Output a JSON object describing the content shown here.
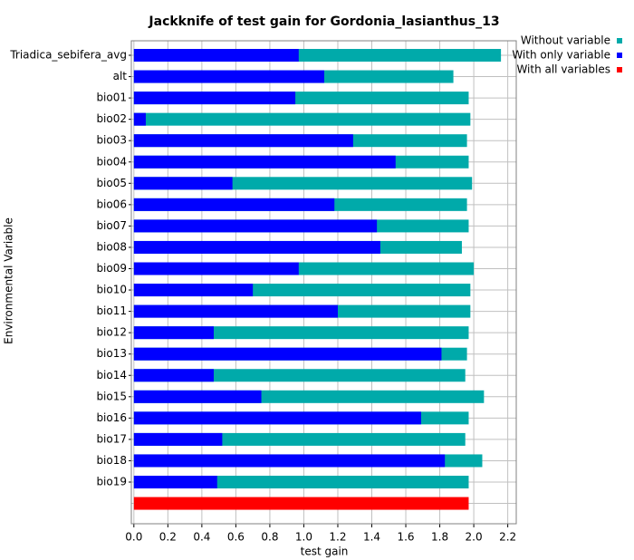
{
  "chart_data": {
    "type": "jackknife-bar",
    "title": "Jackknife of test gain for Gordonia_lasianthus_13",
    "xlabel": "test gain",
    "ylabel": "Environmental Variable",
    "categories": [
      "Triadica_sebifera_avg",
      "alt",
      "bio01",
      "bio02",
      "bio03",
      "bio04",
      "bio05",
      "bio06",
      "bio07",
      "bio08",
      "bio09",
      "bio10",
      "bio11",
      "bio12",
      "bio13",
      "bio14",
      "bio15",
      "bio16",
      "bio17",
      "bio18",
      "bio19"
    ],
    "series": [
      {
        "name": "Without variable",
        "color": "#00aaaa",
        "values": [
          2.16,
          1.88,
          1.97,
          1.98,
          1.96,
          1.97,
          1.99,
          1.96,
          1.97,
          1.93,
          2.0,
          1.98,
          1.98,
          1.97,
          1.96,
          1.95,
          2.06,
          1.97,
          1.95,
          2.05,
          1.97
        ]
      },
      {
        "name": "With only variable",
        "color": "#0000ff",
        "values": [
          0.97,
          1.12,
          0.95,
          0.07,
          1.29,
          1.54,
          0.58,
          1.18,
          1.43,
          1.45,
          0.97,
          0.7,
          1.2,
          0.47,
          1.81,
          0.47,
          0.75,
          1.69,
          0.52,
          1.83,
          0.49
        ]
      }
    ],
    "all_variables": {
      "name": "With all variables",
      "color": "#ff0000",
      "value": 1.97
    },
    "xlim": [
      -0.015,
      2.25
    ],
    "xticks": [
      {
        "value": 0,
        "label": "0.0"
      },
      0.2,
      0.4,
      0.6,
      0.8,
      {
        "value": 1,
        "label": "1.0"
      },
      1.2,
      1.4,
      1.6,
      1.8,
      {
        "value": 2,
        "label": "2.0"
      },
      2.2
    ],
    "grid": true
  }
}
